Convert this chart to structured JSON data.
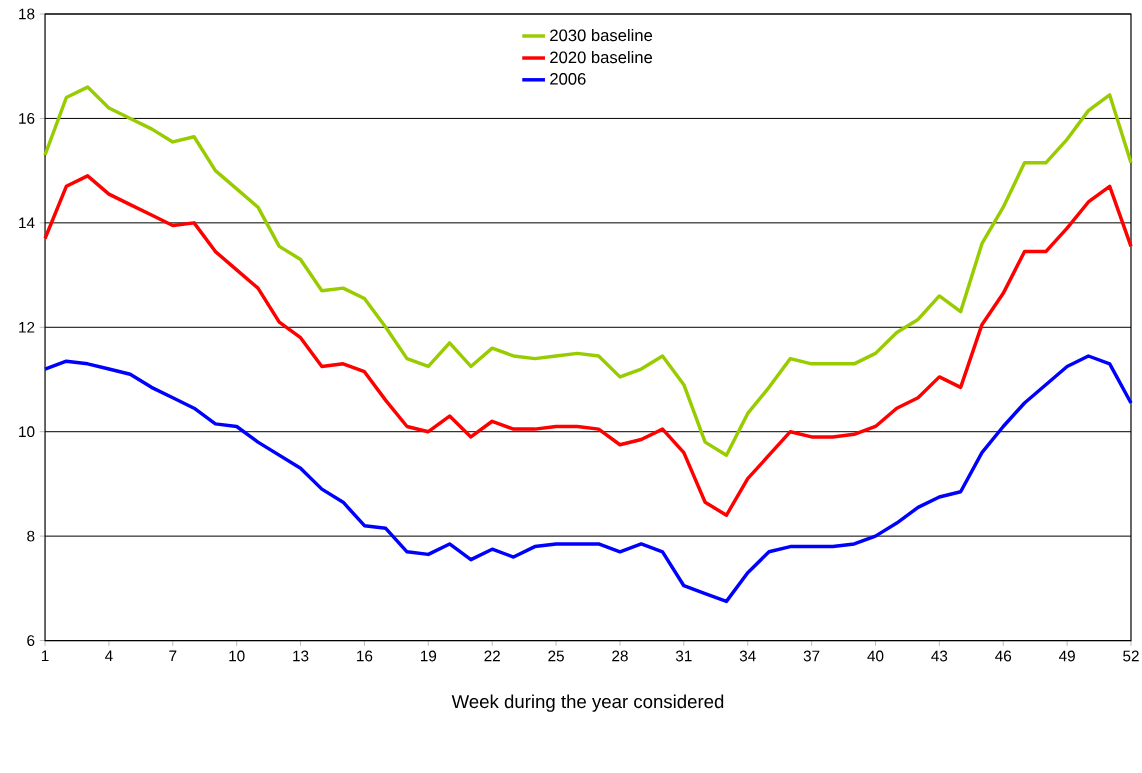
{
  "chart_data": {
    "type": "line",
    "xlabel": "Week during the year considered",
    "x": [
      1,
      2,
      3,
      4,
      5,
      6,
      7,
      8,
      9,
      10,
      11,
      12,
      13,
      14,
      15,
      16,
      17,
      18,
      19,
      20,
      21,
      22,
      23,
      24,
      25,
      26,
      27,
      28,
      29,
      30,
      31,
      32,
      33,
      34,
      35,
      36,
      37,
      38,
      39,
      40,
      41,
      42,
      43,
      44,
      45,
      46,
      47,
      48,
      49,
      50,
      51,
      52
    ],
    "series": [
      {
        "name": "2030 baseline",
        "color": "#99cc00",
        "values": [
          15.3,
          16.4,
          16.6,
          16.2,
          16.0,
          15.8,
          15.55,
          15.65,
          15.0,
          14.65,
          14.3,
          13.55,
          13.3,
          12.7,
          12.75,
          12.55,
          12.0,
          11.4,
          11.25,
          11.7,
          11.25,
          11.6,
          11.45,
          11.4,
          11.45,
          11.5,
          11.45,
          11.05,
          11.2,
          11.45,
          10.9,
          9.8,
          9.55,
          10.35,
          10.85,
          11.4,
          11.3,
          11.3,
          11.3,
          11.5,
          11.9,
          12.15,
          12.6,
          12.3,
          13.6,
          14.3,
          15.15,
          15.15,
          15.6,
          16.15,
          16.45,
          15.15
        ]
      },
      {
        "name": "2020 baseline",
        "color": "#ff0000",
        "values": [
          13.7,
          14.7,
          14.9,
          14.55,
          14.35,
          14.15,
          13.95,
          14.0,
          13.45,
          13.1,
          12.75,
          12.1,
          11.8,
          11.25,
          11.3,
          11.15,
          10.6,
          10.1,
          10.0,
          10.3,
          9.9,
          10.2,
          10.05,
          10.05,
          10.1,
          10.1,
          10.05,
          9.75,
          9.85,
          10.05,
          9.6,
          8.65,
          8.4,
          9.1,
          9.55,
          10.0,
          9.9,
          9.9,
          9.95,
          10.1,
          10.45,
          10.65,
          11.05,
          10.85,
          12.05,
          12.65,
          13.45,
          13.45,
          13.9,
          14.4,
          14.7,
          13.55
        ]
      },
      {
        "name": "2006",
        "color": "#0000ff",
        "values": [
          11.2,
          11.35,
          11.3,
          11.2,
          11.1,
          10.85,
          10.65,
          10.45,
          10.15,
          10.1,
          9.8,
          9.55,
          9.3,
          8.9,
          8.65,
          8.2,
          8.15,
          7.7,
          7.65,
          7.85,
          7.55,
          7.75,
          7.6,
          7.8,
          7.85,
          7.85,
          7.85,
          7.7,
          7.85,
          7.7,
          7.05,
          6.9,
          6.75,
          7.3,
          7.7,
          7.8,
          7.8,
          7.8,
          7.85,
          8.0,
          8.25,
          8.55,
          8.75,
          8.85,
          9.6,
          10.1,
          10.55,
          10.9,
          11.25,
          11.45,
          11.3,
          10.55
        ]
      }
    ],
    "xlim": [
      1,
      52
    ],
    "xticks": [
      1,
      4,
      7,
      10,
      13,
      16,
      19,
      22,
      25,
      28,
      31,
      34,
      37,
      40,
      43,
      46,
      49,
      52
    ],
    "ylim": [
      6,
      18
    ],
    "yticks": [
      6,
      8,
      10,
      12,
      14,
      16,
      18
    ],
    "grid": "y",
    "legend": "top",
    "marker": "none",
    "line_style": "solid"
  }
}
